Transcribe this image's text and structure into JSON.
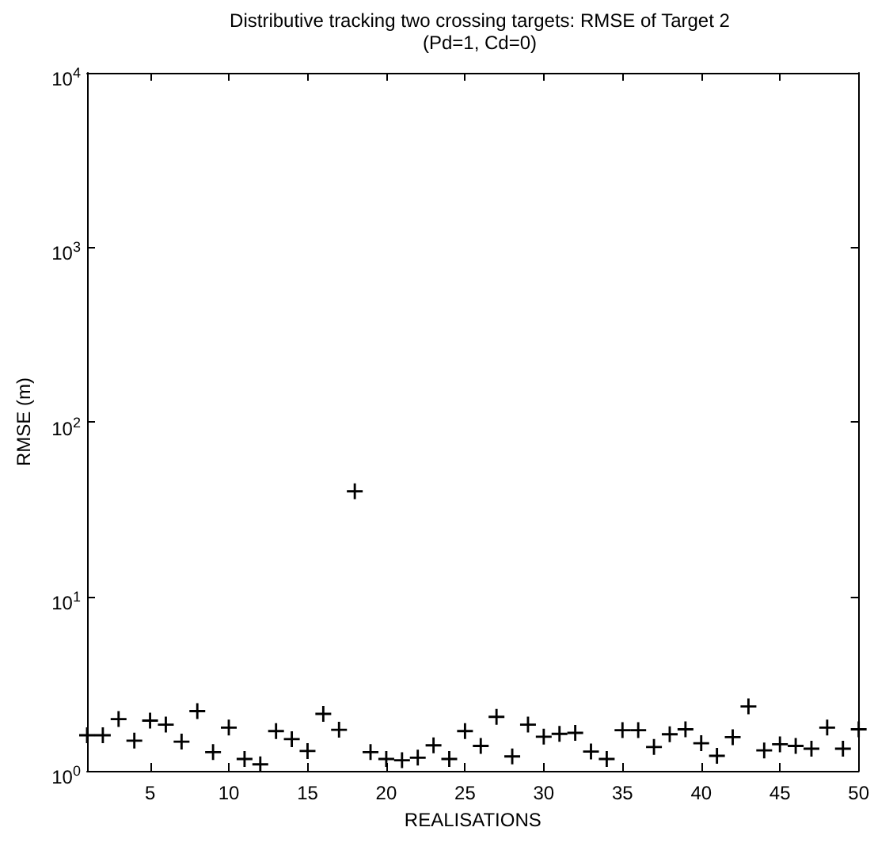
{
  "chart_data": {
    "type": "scatter",
    "title": "Distributive tracking two crossing targets: RMSE of Target 2",
    "subtitle": "(Pd=1, Cd=0)",
    "xlabel": "REALISATIONS",
    "ylabel": "RMSE (m)",
    "x": [
      1,
      2,
      3,
      4,
      5,
      6,
      7,
      8,
      9,
      10,
      11,
      12,
      13,
      14,
      15,
      16,
      17,
      18,
      19,
      20,
      21,
      22,
      23,
      24,
      25,
      26,
      27,
      28,
      29,
      30,
      31,
      32,
      33,
      34,
      35,
      36,
      37,
      38,
      39,
      40,
      41,
      42,
      43,
      44,
      45,
      46,
      47,
      48,
      49,
      50
    ],
    "series": [
      {
        "color": "#000000",
        "values": [
          1.6,
          1.6,
          1.98,
          1.49,
          1.94,
          1.84,
          1.47,
          2.2,
          1.28,
          1.77,
          1.17,
          1.09,
          1.69,
          1.52,
          1.3,
          2.12,
          1.72,
          40,
          1.28,
          1.17,
          1.15,
          1.19,
          1.4,
          1.17,
          1.69,
          1.39,
          2.04,
          1.21,
          1.84,
          1.57,
          1.63,
          1.65,
          1.29,
          1.17,
          1.71,
          1.71,
          1.37,
          1.62,
          1.73,
          1.44,
          1.22,
          1.56,
          2.34,
          1.31,
          1.42,
          1.39,
          1.34,
          1.77,
          1.34,
          1.73
        ]
      }
    ],
    "xlim": [
      1,
      50
    ],
    "xticks": [
      5,
      10,
      15,
      20,
      25,
      30,
      35,
      40,
      45,
      50
    ],
    "ylim": [
      1,
      10000
    ],
    "yticks": [
      {
        "value": 1,
        "label": "10$^{0}$"
      },
      {
        "value": 10,
        "label": "10$^{1}$"
      },
      {
        "value": 100,
        "label": "10$^{2}$"
      },
      {
        "value": 1000,
        "label": "10$^{3}$"
      },
      {
        "value": 10000,
        "label": "10$^{4}$"
      }
    ],
    "log": true,
    "grid": false,
    "marker": "cross"
  }
}
